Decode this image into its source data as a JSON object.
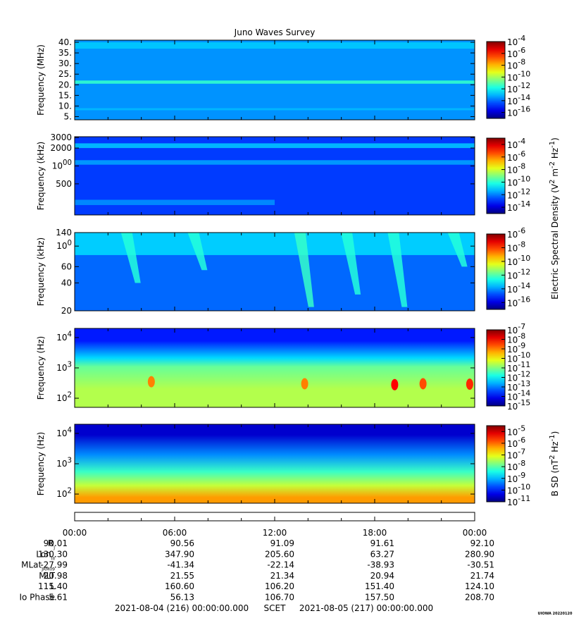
{
  "title": "Juno Waves Survey",
  "footer_mark": "UIOWA 20220120",
  "time_axis": {
    "tick_labels": [
      "00:00",
      "06:00",
      "12:00",
      "18:00",
      "00:00"
    ],
    "range_hours": [
      0,
      24
    ],
    "start_label": "2021-08-04 (216) 00:00:00.000",
    "mid_label": "SCET",
    "end_label": "2021-08-05 (217) 00:00:00.000"
  },
  "ephemeris": [
    {
      "label": "R",
      "sub": "J",
      "values": [
        "90.01",
        "90.56",
        "91.09",
        "91.61",
        "92.10"
      ]
    },
    {
      "label": "Lon",
      "sub": "III",
      "values": [
        "130.30",
        "347.90",
        "205.60",
        "63.27",
        "280.90"
      ]
    },
    {
      "label": "MLat",
      "sub": "JRM09",
      "values": [
        "-27.99",
        "-41.34",
        "-22.14",
        "-38.93",
        "-30.51"
      ]
    },
    {
      "label": "MLT",
      "sub": "",
      "values": [
        "20.98",
        "21.55",
        "21.34",
        "20.94",
        "21.74"
      ]
    },
    {
      "label": "L",
      "sub": "",
      "values": [
        "115.40",
        "160.60",
        "106.20",
        "151.40",
        "124.10"
      ]
    },
    {
      "label": "Io Phase",
      "sub": "",
      "values": [
        "5.61",
        "56.13",
        "106.70",
        "157.50",
        "208.70"
      ]
    }
  ],
  "chart_data": [
    {
      "type": "heatmap",
      "panel": "high-frequency",
      "ylabel": "Frequency (MHz)",
      "yscale": "linear",
      "ylim": [
        3.5,
        41
      ],
      "yticks": [
        5,
        10,
        15,
        20,
        25,
        30,
        35,
        40
      ],
      "ytick_labels": [
        "5.",
        "10.",
        "15.",
        "20.",
        "25.",
        "30.",
        "35.",
        "40."
      ],
      "colorbar": {
        "scale": "log",
        "range_exp": [
          -17,
          -4
        ],
        "tick_exps": [
          -16,
          -14,
          -12,
          -10,
          -8,
          -6,
          -4
        ],
        "tick_labels": [
          "10-16",
          "10-14",
          "10-12",
          "10-10",
          "10-8",
          "10-6",
          "10-4"
        ]
      },
      "background_exp": -13.5,
      "features": [
        {
          "kind": "band",
          "f_low": 20.5,
          "f_high": 22.0,
          "level_exp": -11.5
        },
        {
          "kind": "band",
          "f_low": 8.0,
          "f_high": 9.0,
          "level_exp": -13.0
        },
        {
          "kind": "band",
          "f_low": 37.0,
          "f_high": 40.0,
          "level_exp": -12.8
        }
      ]
    },
    {
      "type": "heatmap",
      "panel": "medium-frequency",
      "ylabel": "Frequency (kHz)",
      "yscale": "log",
      "ylim": [
        150,
        3100
      ],
      "yticks": [
        500,
        1000,
        2000,
        3000
      ],
      "ytick_labels": [
        "500",
        "1000",
        "2000",
        "3000"
      ],
      "colorbar": {
        "scale": "log",
        "range_exp": [
          -15,
          -3
        ],
        "tick_exps": [
          -14,
          -12,
          -10,
          -8,
          -6,
          -4
        ],
        "tick_labels": [
          "10-14",
          "10-12",
          "10-10",
          "10-8",
          "10-6",
          "10-4"
        ]
      },
      "shared_label": "Electric Spectral Density (V2 m-2 Hz-1)",
      "background_exp": -12.8,
      "features": [
        {
          "kind": "band",
          "f_low": 2000,
          "f_high": 2400,
          "level_exp": -11.2
        },
        {
          "kind": "band",
          "f_low": 1050,
          "f_high": 1250,
          "level_exp": -11.6
        },
        {
          "kind": "band",
          "f_low": 220,
          "f_high": 270,
          "level_exp": -11.8,
          "t_end_hours": 12
        }
      ]
    },
    {
      "type": "heatmap",
      "panel": "low-frequency",
      "ylabel": "Frequency (kHz)",
      "yscale": "log",
      "ylim": [
        20,
        140
      ],
      "yticks": [
        20,
        40,
        60,
        100,
        140
      ],
      "ytick_labels": [
        "20",
        "40",
        "60",
        "100",
        "140"
      ],
      "colorbar": {
        "scale": "log",
        "range_exp": [
          -17,
          -6
        ],
        "tick_exps": [
          -16,
          -14,
          -12,
          -10,
          -8,
          -6
        ],
        "tick_labels": [
          "10-16",
          "10-14",
          "10-12",
          "10-10",
          "10-8",
          "10-6"
        ]
      },
      "background_exp": -14.5,
      "features": [
        {
          "kind": "band",
          "f_low": 80,
          "f_high": 140,
          "level_exp": -13.3
        },
        {
          "kind": "streak",
          "t_hours": 3.2,
          "f_top": 140,
          "f_bottom": 40,
          "level_exp": -12.5
        },
        {
          "kind": "streak",
          "t_hours": 7.2,
          "f_top": 140,
          "f_bottom": 55,
          "level_exp": -12.5
        },
        {
          "kind": "streak",
          "t_hours": 13.6,
          "f_top": 140,
          "f_bottom": 22,
          "level_exp": -12.3
        },
        {
          "kind": "streak",
          "t_hours": 16.4,
          "f_top": 140,
          "f_bottom": 30,
          "level_exp": -12.5
        },
        {
          "kind": "streak",
          "t_hours": 19.2,
          "f_top": 140,
          "f_bottom": 22,
          "level_exp": -12.5
        },
        {
          "kind": "streak",
          "t_hours": 22.8,
          "f_top": 140,
          "f_bottom": 60,
          "level_exp": -12.5
        }
      ]
    },
    {
      "type": "heatmap",
      "panel": "electric-low",
      "ylabel": "Frequency (Hz)",
      "yscale": "log",
      "ylim": [
        50,
        20000
      ],
      "yticks": [
        100,
        1000,
        10000
      ],
      "ytick_labels": [
        "10^2",
        "10^3",
        "10^4"
      ],
      "colorbar": {
        "scale": "log",
        "range_exp": [
          -15,
          -7
        ],
        "tick_exps": [
          -15,
          -14,
          -13,
          -12,
          -11,
          -10,
          -9,
          -8,
          -7
        ],
        "tick_labels": [
          "10-15",
          "10-14",
          "10-13",
          "10-12",
          "10-11",
          "10-10",
          "10-9",
          "10-8",
          "10-7"
        ]
      },
      "layers": [
        {
          "f_low": 3000,
          "f_high": 20000,
          "level_exp": -13.8
        },
        {
          "f_low": 1500,
          "f_high": 3000,
          "level_exp": -12.3
        },
        {
          "f_low": 800,
          "f_high": 1500,
          "level_exp": -11.2
        },
        {
          "f_low": 50,
          "f_high": 800,
          "level_exp": -10.6
        }
      ],
      "features": [
        {
          "kind": "blob",
          "t_hours": 4.6,
          "f_center": 350,
          "level_exp": -9.0
        },
        {
          "kind": "blob",
          "t_hours": 13.8,
          "f_center": 300,
          "level_exp": -9.0
        },
        {
          "kind": "blob",
          "t_hours": 19.2,
          "f_center": 280,
          "level_exp": -8.0
        },
        {
          "kind": "blob",
          "t_hours": 20.9,
          "f_center": 300,
          "level_exp": -8.6
        },
        {
          "kind": "blob",
          "t_hours": 23.7,
          "f_center": 290,
          "level_exp": -8.3
        }
      ]
    },
    {
      "type": "heatmap",
      "panel": "magnetic",
      "ylabel": "Frequency (Hz)",
      "yscale": "log",
      "ylim": [
        50,
        20000
      ],
      "yticks": [
        100,
        1000,
        10000
      ],
      "ytick_labels": [
        "10^2",
        "10^3",
        "10^4"
      ],
      "colorbar": {
        "scale": "log",
        "range_exp": [
          -11,
          -4.5
        ],
        "tick_exps": [
          -11,
          -10,
          -9,
          -8,
          -7,
          -6,
          -5
        ],
        "tick_labels": [
          "10-11",
          "10-10",
          "10-9",
          "10-8",
          "10-7",
          "10-6",
          "10-5"
        ],
        "label": "B SD (nT2 Hz-1)"
      },
      "layers": [
        {
          "f_low": 4000,
          "f_high": 20000,
          "level_exp": -10.5
        },
        {
          "f_low": 1000,
          "f_high": 4000,
          "level_exp": -9.3
        },
        {
          "f_low": 300,
          "f_high": 1000,
          "level_exp": -8.2
        },
        {
          "f_low": 120,
          "f_high": 300,
          "level_exp": -7.3
        },
        {
          "f_low": 50,
          "f_high": 120,
          "level_exp": -6.3
        }
      ],
      "features": []
    }
  ]
}
